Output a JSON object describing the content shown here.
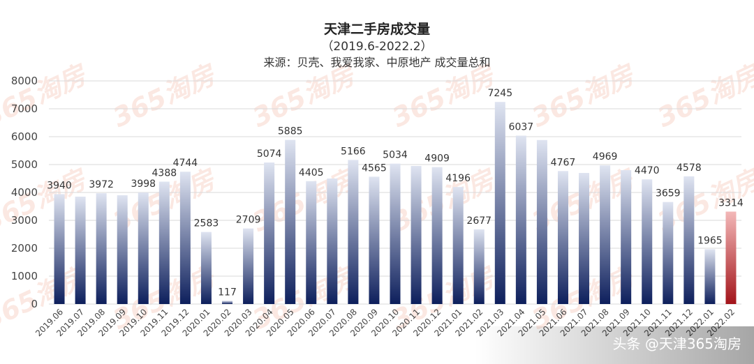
{
  "chart_data": {
    "type": "bar",
    "title": "天津二手房成交量",
    "subtitle": "（2019.6-2022.2）",
    "source": "来源：贝壳、我爱我家、中原地产 成交量总和",
    "xlabel": "",
    "ylabel": "",
    "ylim": [
      0,
      8000
    ],
    "yticks": [
      0,
      1000,
      2000,
      3000,
      4000,
      5000,
      6000,
      7000,
      8000
    ],
    "grid": true,
    "categories": [
      "2019.06",
      "2019.07",
      "2019.08",
      "2019.09",
      "2019.10",
      "2019.11",
      "2019.12",
      "2020.01",
      "2020.02",
      "2020.03",
      "2020.04",
      "2020.05",
      "2020.06",
      "2020.07",
      "2020.08",
      "2020.09",
      "2020.10",
      "2020.11",
      "2020.12",
      "2021.01",
      "2021.02",
      "2021.03",
      "2021.04",
      "2021.05",
      "2021.06",
      "2021.07",
      "2021.08",
      "2021.09",
      "2021.10",
      "2021.11",
      "2021.12",
      "2022.01",
      "2022.02"
    ],
    "values": [
      3940,
      3850,
      3972,
      3900,
      3998,
      4388,
      4744,
      2583,
      117,
      2709,
      5074,
      5885,
      4405,
      4500,
      5166,
      4565,
      5034,
      4950,
      4909,
      4196,
      2677,
      7245,
      6037,
      5880,
      4767,
      4700,
      4969,
      4800,
      4470,
      3659,
      4578,
      1965,
      3314
    ],
    "labeled": [
      true,
      false,
      true,
      false,
      true,
      true,
      true,
      true,
      true,
      true,
      true,
      true,
      true,
      false,
      true,
      true,
      true,
      false,
      true,
      true,
      true,
      true,
      true,
      false,
      true,
      false,
      true,
      false,
      true,
      true,
      true,
      true,
      true
    ],
    "highlight_index": 32,
    "colors": {
      "bar_top": "#dfe4f1",
      "bar_bottom": "#0d1f5c",
      "highlight_top": "#f3b8b8",
      "highlight_bottom": "#a3141a",
      "grid": "#d9d9d9"
    }
  },
  "watermark": "365淘房",
  "footer": "头条 @天津365淘房"
}
